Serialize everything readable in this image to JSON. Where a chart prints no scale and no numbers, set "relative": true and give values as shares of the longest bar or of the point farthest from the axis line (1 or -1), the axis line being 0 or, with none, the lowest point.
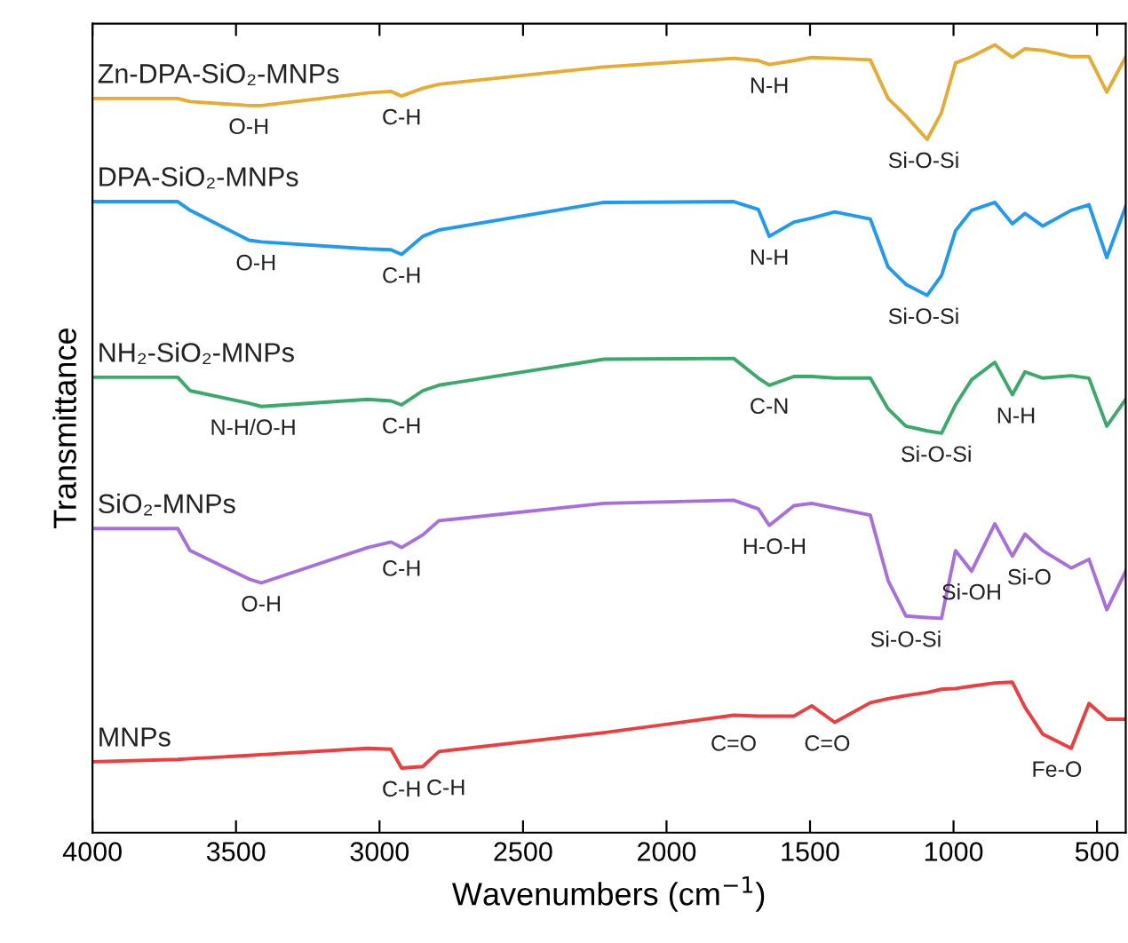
{
  "chart_data": {
    "type": "line",
    "relative": true,
    "xlabel": "Wavenumbers (cm$^{−1}$)",
    "ylabel": "Transmittance",
    "xlim": [
      4000,
      400
    ],
    "xticks": [
      4000,
      3500,
      3000,
      2500,
      2000,
      1500,
      1000,
      500
    ],
    "grid": false,
    "legend": false,
    "marker": "none",
    "line_style": "solid",
    "x": [
      4000,
      3703,
      3660,
      3455,
      3412,
      3041,
      2960,
      2923,
      2849,
      2793,
      2218,
      1766,
      1680,
      1642,
      1556,
      1494,
      1414,
      1290,
      1228,
      1166,
      1092,
      1042,
      993,
      937,
      856,
      795,
      751,
      689,
      590,
      528,
      466,
      400
    ],
    "series": [
      {
        "name": "Zn-DPA-SiO₂-MNPs",
        "color": "#e8ab30",
        "values": [
          0.932,
          0.932,
          0.928,
          0.923,
          0.923,
          0.939,
          0.941,
          0.935,
          0.945,
          0.95,
          0.972,
          0.983,
          0.98,
          0.975,
          0.98,
          0.984,
          0.983,
          0.981,
          0.932,
          0.91,
          0.88,
          0.914,
          0.977,
          0.985,
          1.0,
          0.984,
          0.995,
          0.993,
          0.985,
          0.985,
          0.94,
          0.985
        ]
      },
      {
        "name": "DPA-SiO₂-MNPs",
        "color": "#1e9bf0",
        "values": [
          0.801,
          0.801,
          0.79,
          0.752,
          0.75,
          0.741,
          0.74,
          0.734,
          0.757,
          0.765,
          0.8,
          0.801,
          0.791,
          0.757,
          0.775,
          0.78,
          0.788,
          0.779,
          0.718,
          0.696,
          0.682,
          0.707,
          0.764,
          0.79,
          0.8,
          0.773,
          0.786,
          0.77,
          0.79,
          0.797,
          0.73,
          0.795
        ]
      },
      {
        "name": "NH₂-SiO₂-MNPs",
        "color": "#3aaa6a",
        "values": [
          0.578,
          0.578,
          0.561,
          0.545,
          0.541,
          0.55,
          0.548,
          0.543,
          0.561,
          0.568,
          0.601,
          0.602,
          0.577,
          0.568,
          0.579,
          0.579,
          0.577,
          0.577,
          0.538,
          0.516,
          0.51,
          0.507,
          0.543,
          0.575,
          0.597,
          0.556,
          0.585,
          0.577,
          0.58,
          0.577,
          0.516,
          0.55
        ]
      },
      {
        "name": "SiO₂-MNPs",
        "color": "#a86ee0",
        "values": [
          0.386,
          0.386,
          0.358,
          0.322,
          0.317,
          0.362,
          0.369,
          0.362,
          0.378,
          0.396,
          0.418,
          0.422,
          0.411,
          0.39,
          0.415,
          0.418,
          0.412,
          0.403,
          0.32,
          0.275,
          0.273,
          0.272,
          0.358,
          0.332,
          0.392,
          0.351,
          0.379,
          0.358,
          0.336,
          0.347,
          0.283,
          0.332
        ]
      },
      {
        "name": "MNPs",
        "color": "#f03c3c",
        "values": [
          0.09,
          0.093,
          0.094,
          0.098,
          0.099,
          0.107,
          0.106,
          0.082,
          0.084,
          0.103,
          0.127,
          0.149,
          0.148,
          0.148,
          0.148,
          0.161,
          0.14,
          0.165,
          0.17,
          0.174,
          0.178,
          0.182,
          0.183,
          0.186,
          0.19,
          0.191,
          0.159,
          0.125,
          0.107,
          0.164,
          0.144,
          0.144
        ]
      }
    ],
    "annotations": [
      {
        "text": "O-H",
        "x": 3455,
        "y": 0.923
      },
      {
        "text": "C-H",
        "x": 2923,
        "y": 0.935
      },
      {
        "text": "N-H",
        "x": 1642,
        "y": 0.975
      },
      {
        "text": "Si-O-Si",
        "x": 1104,
        "y": 0.88
      },
      {
        "text": "O-H",
        "x": 3430,
        "y": 0.75
      },
      {
        "text": "C-H",
        "x": 2923,
        "y": 0.734
      },
      {
        "text": "N-H",
        "x": 1642,
        "y": 0.757
      },
      {
        "text": "Si-O-Si",
        "x": 1104,
        "y": 0.682
      },
      {
        "text": "N-H/O-H",
        "x": 3440,
        "y": 0.541
      },
      {
        "text": "C-H",
        "x": 2923,
        "y": 0.543
      },
      {
        "text": "C-N",
        "x": 1642,
        "y": 0.568
      },
      {
        "text": "Si-O-Si",
        "x": 1060,
        "y": 0.507
      },
      {
        "text": "N-H",
        "x": 782,
        "y": 0.556
      },
      {
        "text": "O-H",
        "x": 3412,
        "y": 0.317
      },
      {
        "text": "C-H",
        "x": 2923,
        "y": 0.362
      },
      {
        "text": "H-O-H",
        "x": 1624,
        "y": 0.39
      },
      {
        "text": "Si-O-Si",
        "x": 1166,
        "y": 0.272
      },
      {
        "text": "Si-OH",
        "x": 937,
        "y": 0.332
      },
      {
        "text": "Si-O",
        "x": 795,
        "y": 0.351
      },
      {
        "text": "C-H",
        "x": 2923,
        "y": 0.082
      },
      {
        "text": "C-H",
        "x": 2849,
        "y": 0.084
      },
      {
        "text": "C=O",
        "x": 1766,
        "y": 0.14
      },
      {
        "text": "C=O",
        "x": 1440,
        "y": 0.14
      },
      {
        "text": "Fe-O",
        "x": 640,
        "y": 0.107
      }
    ]
  }
}
